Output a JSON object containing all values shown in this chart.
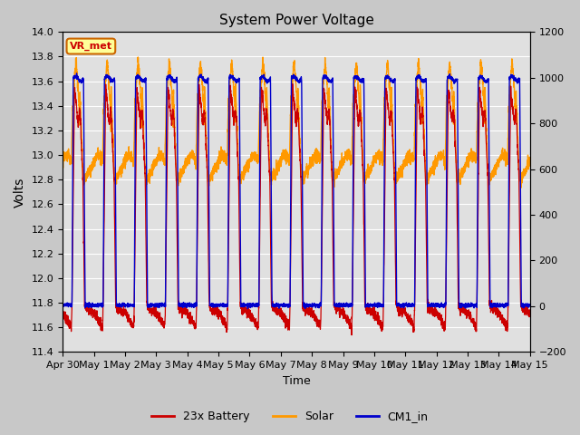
{
  "title": "System Power Voltage",
  "xlabel": "Time",
  "ylabel": "Volts",
  "ylim_left": [
    11.4,
    14.0
  ],
  "ylim_right": [
    -200,
    1200
  ],
  "background_color": "#c8c8c8",
  "plot_bg_color": "#e0e0e0",
  "grid_color": "#ffffff",
  "line_colors": {
    "battery": "#cc0000",
    "solar": "#ff9900",
    "cm1": "#0000cc"
  },
  "legend_labels": [
    "23x Battery",
    "Solar",
    "CM1_in"
  ],
  "annotation_text": "VR_met",
  "annotation_bg": "#ffff99",
  "annotation_border": "#cc6600"
}
